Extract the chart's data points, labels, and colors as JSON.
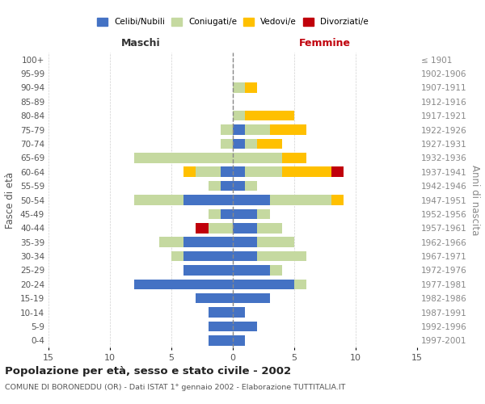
{
  "age_groups": [
    "0-4",
    "5-9",
    "10-14",
    "15-19",
    "20-24",
    "25-29",
    "30-34",
    "35-39",
    "40-44",
    "45-49",
    "50-54",
    "55-59",
    "60-64",
    "65-69",
    "70-74",
    "75-79",
    "80-84",
    "85-89",
    "90-94",
    "95-99",
    "100+"
  ],
  "birth_years": [
    "1997-2001",
    "1992-1996",
    "1987-1991",
    "1982-1986",
    "1977-1981",
    "1972-1976",
    "1967-1971",
    "1962-1966",
    "1957-1961",
    "1952-1956",
    "1947-1951",
    "1942-1946",
    "1937-1941",
    "1932-1936",
    "1927-1931",
    "1922-1926",
    "1917-1921",
    "1912-1916",
    "1907-1911",
    "1902-1906",
    "≤ 1901"
  ],
  "male": {
    "celibi": [
      2,
      2,
      2,
      3,
      8,
      4,
      4,
      4,
      0,
      1,
      4,
      1,
      1,
      0,
      0,
      0,
      0,
      0,
      0,
      0,
      0
    ],
    "coniugati": [
      0,
      0,
      0,
      0,
      0,
      0,
      1,
      2,
      2,
      1,
      4,
      1,
      2,
      8,
      1,
      1,
      0,
      0,
      0,
      0,
      0
    ],
    "vedovi": [
      0,
      0,
      0,
      0,
      0,
      0,
      0,
      0,
      0,
      0,
      0,
      0,
      1,
      0,
      0,
      0,
      0,
      0,
      0,
      0,
      0
    ],
    "divorziati": [
      0,
      0,
      0,
      0,
      0,
      0,
      0,
      0,
      1,
      0,
      0,
      0,
      0,
      0,
      0,
      0,
      0,
      0,
      0,
      0,
      0
    ]
  },
  "female": {
    "nubili": [
      1,
      2,
      1,
      3,
      5,
      3,
      2,
      2,
      2,
      2,
      3,
      1,
      1,
      0,
      1,
      1,
      0,
      0,
      0,
      0,
      0
    ],
    "coniugate": [
      0,
      0,
      0,
      0,
      1,
      1,
      4,
      3,
      2,
      1,
      5,
      1,
      3,
      4,
      1,
      2,
      1,
      0,
      1,
      0,
      0
    ],
    "vedove": [
      0,
      0,
      0,
      0,
      0,
      0,
      0,
      0,
      0,
      0,
      1,
      0,
      4,
      2,
      2,
      3,
      4,
      0,
      1,
      0,
      0
    ],
    "divorziate": [
      0,
      0,
      0,
      0,
      0,
      0,
      0,
      0,
      0,
      0,
      0,
      0,
      1,
      0,
      0,
      0,
      0,
      0,
      0,
      0,
      0
    ]
  },
  "colors": {
    "celibi_nubili": "#4472c4",
    "coniugati": "#c5d9a0",
    "vedovi": "#ffc000",
    "divorziati": "#c0000b"
  },
  "title": "Popolazione per età, sesso e stato civile - 2002",
  "subtitle": "COMUNE DI BORONEDDU (OR) - Dati ISTAT 1° gennaio 2002 - Elaborazione TUTTITALIA.IT",
  "ylabel_left": "Fasce di età",
  "ylabel_right": "Anni di nascita",
  "xlabel_left": "Maschi",
  "xlabel_right": "Femmine",
  "xlim": 15,
  "legend_labels": [
    "Celibi/Nubili",
    "Coniugati/e",
    "Vedovi/e",
    "Divorziati/e"
  ],
  "background_color": "#ffffff",
  "grid_color": "#cccccc"
}
